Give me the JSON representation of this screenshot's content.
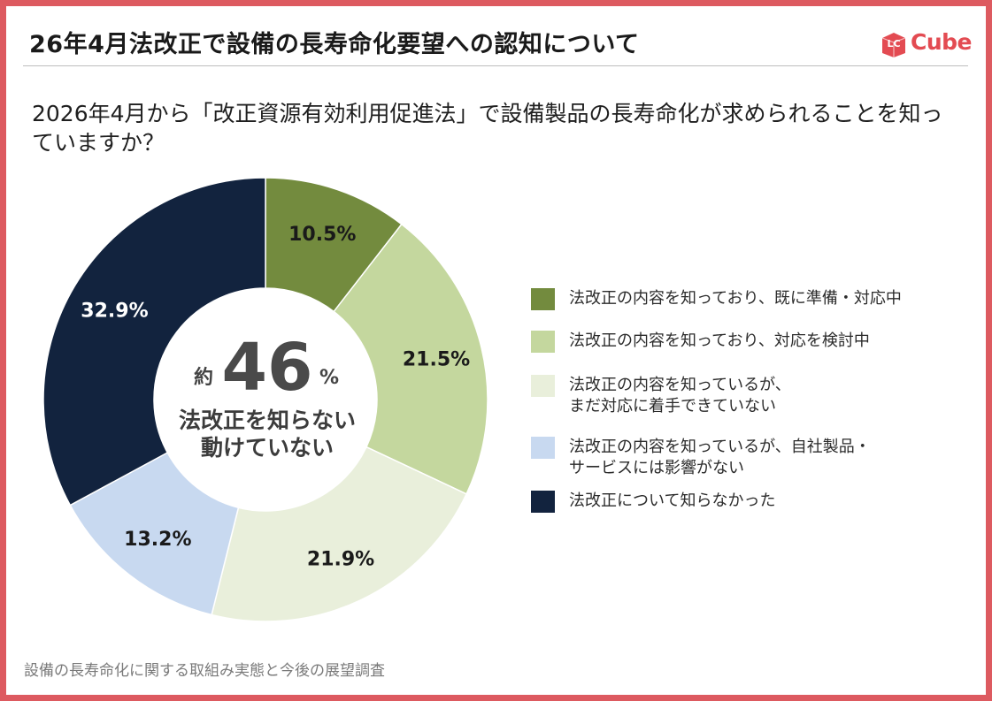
{
  "header": {
    "title": "26年4月法改正で設備の長寿命化要望への認知について",
    "logo_prefix": "LC",
    "logo_text": "Cube"
  },
  "question": "2026年4月から「改正資源有効利用促進法」で設備製品の長寿命化が求められることを知っていますか？",
  "center": {
    "prefix": "約",
    "number": "46",
    "unit": "%",
    "line1": "法改正を知らない",
    "line2": "動けていない"
  },
  "source": "設備の長寿命化に関する取組み実態と今後の展望調査",
  "chart_data": {
    "type": "pie",
    "donut": true,
    "categories": [
      "法改正の内容を知っており、既に準備・対応中",
      "法改正の内容を知っており、対応を検討中",
      "法改正の内容を知っているが、\nまだ対応に着手できていない",
      "法改正の内容を知っているが、自社製品・\nサービスには影響がない",
      "法改正について知らなかった"
    ],
    "values": [
      10.5,
      21.5,
      21.9,
      13.2,
      32.9
    ],
    "labels": [
      "10.5%",
      "21.5%",
      "21.9%",
      "13.2%",
      "32.9%"
    ],
    "colors": [
      "#738b3e",
      "#c4d79e",
      "#e9efdb",
      "#c8d9f0",
      "#12233e"
    ],
    "label_colors": [
      "#1a1a1a",
      "#1a1a1a",
      "#1a1a1a",
      "#1a1a1a",
      "#ffffff"
    ],
    "legend_position": "right",
    "start": "top",
    "direction": "clockwise"
  }
}
